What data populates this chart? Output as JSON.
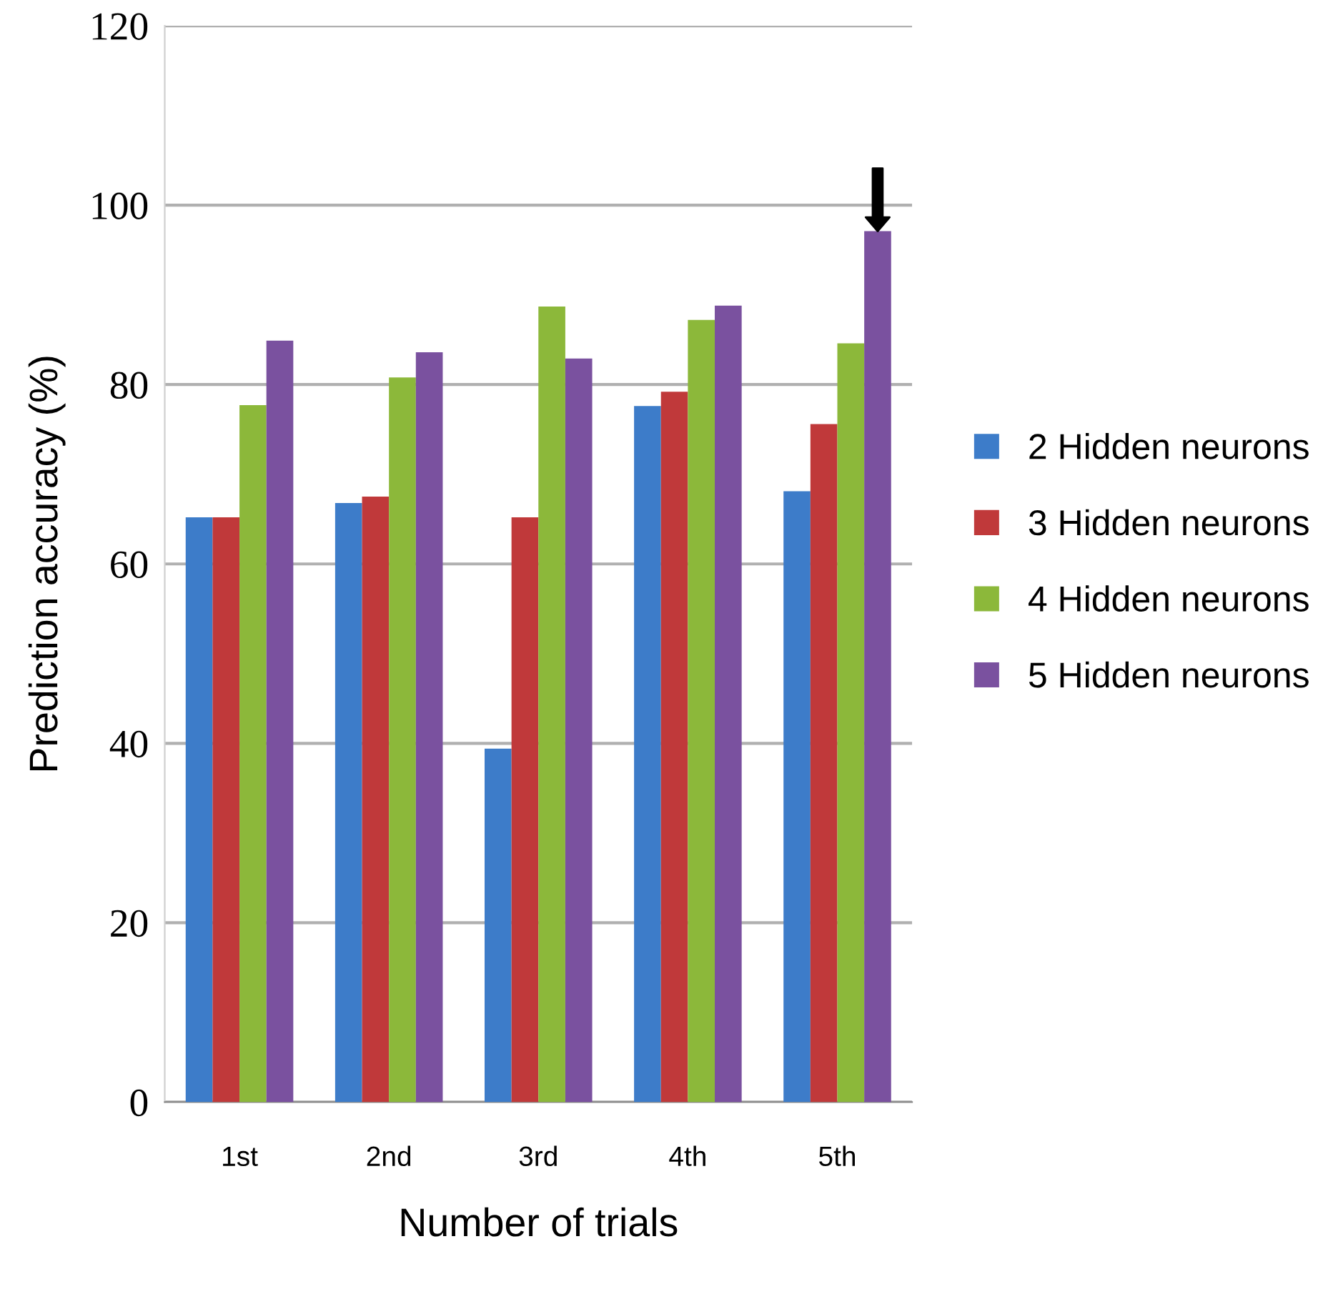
{
  "chart_data": {
    "type": "bar",
    "xlabel": "Number of trials",
    "ylabel": "Prediction accuracy (%)",
    "categories": [
      "1st",
      "2nd",
      "3rd",
      "4th",
      "5th"
    ],
    "series": [
      {
        "name": "2 Hidden neurons",
        "color": "#3d7cc9",
        "values": [
          65.2,
          66.8,
          39.4,
          77.6,
          68.1
        ]
      },
      {
        "name": "3 Hidden neurons",
        "color": "#c0393a",
        "values": [
          65.2,
          67.5,
          65.2,
          79.2,
          75.6
        ]
      },
      {
        "name": "4 Hidden neurons",
        "color": "#8cb83a",
        "values": [
          77.7,
          80.8,
          88.7,
          87.2,
          84.6
        ]
      },
      {
        "name": "5 Hidden neurons",
        "color": "#7a519f",
        "values": [
          84.9,
          83.6,
          82.9,
          88.8,
          97.1
        ]
      }
    ],
    "ylim": [
      0,
      120
    ],
    "yticks": [
      0,
      20,
      40,
      60,
      80,
      100,
      120
    ],
    "grid": "y",
    "legend": "right"
  }
}
